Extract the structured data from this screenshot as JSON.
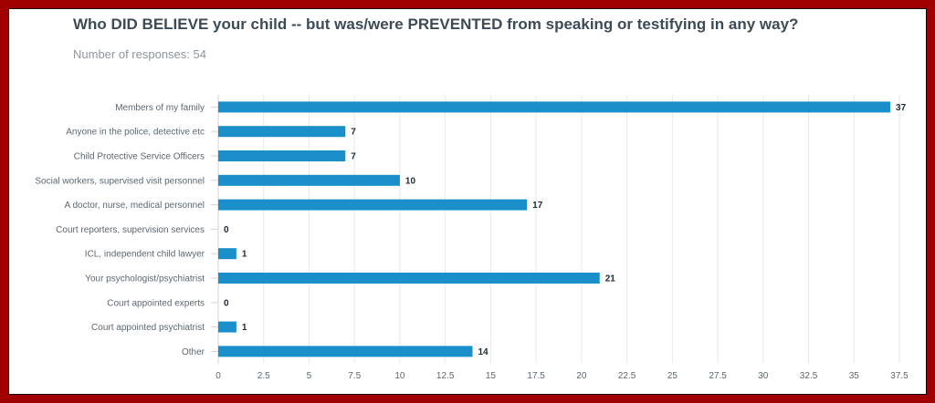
{
  "chart_data": {
    "type": "bar",
    "orientation": "horizontal",
    "title": "Who DID BELIEVE your child -- but was/were PREVENTED from speaking or testifying in any way?",
    "subtitle": "Number of responses: 54",
    "categories": [
      "Members of my family",
      "Anyone in the police, detective etc",
      "Child Protective Service Officers",
      "Social workers, supervised visit personnel",
      "A doctor, nurse, medical personnel",
      "Court reporters, supervision services",
      "ICL, independent child lawyer",
      "Your psychologist/psychiatrist",
      "Court appointed experts",
      "Court appointed psychiatrist",
      "Other"
    ],
    "values": [
      37,
      7,
      7,
      10,
      17,
      0,
      1,
      21,
      0,
      1,
      14
    ],
    "xlim": [
      0,
      37.5
    ],
    "xticks": [
      "0",
      "2.5",
      "5",
      "7.5",
      "10",
      "12.5",
      "15",
      "17.5",
      "20",
      "22.5",
      "25",
      "27.5",
      "30",
      "32.5",
      "35",
      "37.5"
    ],
    "grid": true,
    "bar_color": "#1a8fc9"
  }
}
